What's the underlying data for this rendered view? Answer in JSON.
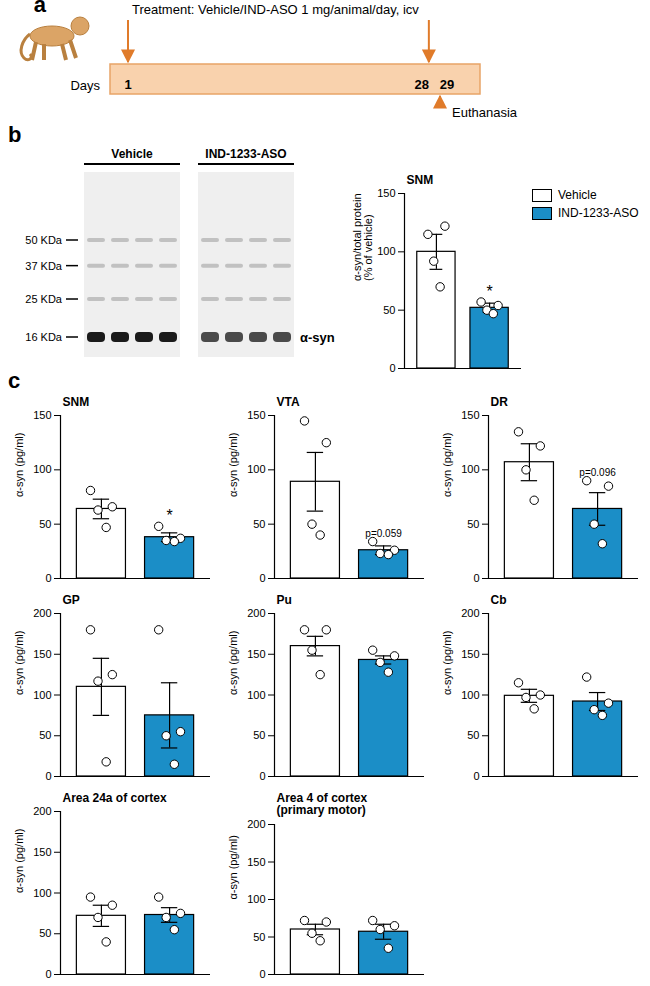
{
  "timeline": {
    "panel_label": "a",
    "text": "Treatment: Vehicle/IND-ASO 1 mg/animal/day, icv",
    "axis_label": "Days",
    "days": [
      1,
      28,
      29
    ],
    "treatment_days": [
      1,
      28
    ],
    "event_day": 29,
    "event": "Euthanasia"
  },
  "blot": {
    "panel_label": "b",
    "groups": [
      {
        "name": "Vehicle",
        "lanes": 4
      },
      {
        "name": "IND-1233-ASO",
        "lanes": 4
      }
    ],
    "markers": [
      {
        "value": 50,
        "label": "50 KDa"
      },
      {
        "value": 37,
        "label": "37 KDa"
      },
      {
        "value": 25,
        "label": "25 KDa"
      },
      {
        "value": 16,
        "label": "16 KDa"
      }
    ],
    "band": {
      "value": 16,
      "label": "α-syn"
    }
  },
  "chart_data": [
    {
      "type": "bar",
      "title": "SNM",
      "ylabel": "α-syn/total protein\n(% of vehicle)",
      "categories": [
        null
      ],
      "series": [
        {
          "name": "Vehicle",
          "color": "#ffffff",
          "values": [
            100
          ],
          "error": [
            15
          ],
          "points": [
            [
              115,
              122,
              92,
              70
            ]
          ]
        },
        {
          "name": "IND-1233-ASO",
          "color": "#1b8ec7",
          "values": [
            52
          ],
          "error": [
            4
          ],
          "points": [
            [
              57,
              54,
              50,
              47
            ]
          ],
          "annotations": [
            "*"
          ]
        }
      ],
      "ylim": [
        0,
        150
      ],
      "yticks": [
        0,
        50,
        100,
        150
      ],
      "legend": "right"
    },
    {
      "type": "bar",
      "panel_label": "c",
      "title": "SNM",
      "ylabel": "α-syn (pg/ml)",
      "categories": [
        null
      ],
      "series": [
        {
          "color": "#ffffff",
          "values": [
            64
          ],
          "error": [
            9
          ],
          "points": [
            [
              81,
              66,
              63,
              47
            ]
          ]
        },
        {
          "color": "#1b8ec7",
          "values": [
            38
          ],
          "error": [
            4
          ],
          "points": [
            [
              48,
              37,
              35,
              34
            ]
          ],
          "annotations": [
            "*"
          ]
        }
      ],
      "ylim": [
        0,
        150
      ],
      "yticks": [
        0,
        50,
        100,
        150
      ]
    },
    {
      "type": "bar",
      "title": "VTA",
      "ylabel": "α-syn (pg/ml)",
      "categories": [
        null
      ],
      "series": [
        {
          "color": "#ffffff",
          "values": [
            89
          ],
          "error": [
            27
          ],
          "points": [
            [
              145,
              125,
              50,
              40
            ]
          ]
        },
        {
          "color": "#1b8ec7",
          "values": [
            26
          ],
          "error": [
            4
          ],
          "points": [
            [
              34,
              26,
              23,
              22
            ]
          ],
          "annotations": [
            "p=0.059"
          ]
        }
      ],
      "ylim": [
        0,
        150
      ],
      "yticks": [
        0,
        50,
        100,
        150
      ]
    },
    {
      "type": "bar",
      "title": "DR",
      "ylabel": "α-syn (pg/ml)",
      "categories": [
        null
      ],
      "series": [
        {
          "color": "#ffffff",
          "values": [
            107
          ],
          "error": [
            17
          ],
          "points": [
            [
              135,
              122,
              100,
              72
            ]
          ]
        },
        {
          "color": "#1b8ec7",
          "values": [
            64
          ],
          "error": [
            15
          ],
          "points": [
            [
              90,
              85,
              50,
              32
            ]
          ],
          "annotations": [
            "p=0.096"
          ]
        }
      ],
      "ylim": [
        0,
        150
      ],
      "yticks": [
        0,
        50,
        100,
        150
      ]
    },
    {
      "type": "bar",
      "title": "GP",
      "ylabel": "α-syn (pg/ml)",
      "categories": [
        null
      ],
      "series": [
        {
          "color": "#ffffff",
          "values": [
            110
          ],
          "error": [
            35
          ],
          "points": [
            [
              180,
              125,
              117,
              18
            ]
          ]
        },
        {
          "color": "#1b8ec7",
          "values": [
            75
          ],
          "error": [
            40
          ],
          "points": [
            [
              180,
              55,
              50,
              15
            ]
          ]
        }
      ],
      "ylim": [
        0,
        200
      ],
      "yticks": [
        0,
        50,
        100,
        150,
        200
      ]
    },
    {
      "type": "bar",
      "title": "Pu",
      "ylabel": "α-syn (pg/ml)",
      "categories": [
        null
      ],
      "series": [
        {
          "color": "#ffffff",
          "values": [
            160
          ],
          "error": [
            12
          ],
          "points": [
            [
              180,
              180,
              155,
              125
            ]
          ]
        },
        {
          "color": "#1b8ec7",
          "values": [
            143
          ],
          "error": [
            5
          ],
          "points": [
            [
              155,
              148,
              140,
              128
            ]
          ]
        }
      ],
      "ylim": [
        0,
        200
      ],
      "yticks": [
        0,
        50,
        100,
        150,
        200
      ]
    },
    {
      "type": "bar",
      "title": "Cb",
      "ylabel": "α-syn (pg/ml)",
      "categories": [
        null
      ],
      "series": [
        {
          "color": "#ffffff",
          "values": [
            99
          ],
          "error": [
            8
          ],
          "points": [
            [
              115,
              100,
              97,
              83
            ]
          ]
        },
        {
          "color": "#1b8ec7",
          "values": [
            92
          ],
          "error": [
            11
          ],
          "points": [
            [
              122,
              90,
              82,
              75
            ]
          ]
        }
      ],
      "ylim": [
        0,
        200
      ],
      "yticks": [
        0,
        50,
        100,
        150,
        200
      ]
    },
    {
      "type": "bar",
      "title": "Area 24a of cortex",
      "ylabel": "α-syn (pg/ml)",
      "categories": [
        null
      ],
      "series": [
        {
          "color": "#ffffff",
          "values": [
            72
          ],
          "error": [
            13
          ],
          "points": [
            [
              95,
              85,
              70,
              40
            ]
          ]
        },
        {
          "color": "#1b8ec7",
          "values": [
            73
          ],
          "error": [
            9
          ],
          "points": [
            [
              95,
              75,
              70,
              55
            ]
          ]
        }
      ],
      "ylim": [
        0,
        200
      ],
      "yticks": [
        0,
        50,
        100,
        150,
        200
      ]
    },
    {
      "type": "bar",
      "title": "Area 4 of cortex\n(primary motor)",
      "ylabel": "α-syn (pg/ml)",
      "categories": [
        null
      ],
      "series": [
        {
          "color": "#ffffff",
          "values": [
            60
          ],
          "error": [
            7
          ],
          "points": [
            [
              72,
              70,
              55,
              45
            ]
          ]
        },
        {
          "color": "#1b8ec7",
          "values": [
            57
          ],
          "error": [
            10
          ],
          "points": [
            [
              72,
              65,
              60,
              35
            ]
          ]
        }
      ],
      "ylim": [
        0,
        200
      ],
      "yticks": [
        0,
        50,
        100,
        150,
        200
      ]
    }
  ]
}
